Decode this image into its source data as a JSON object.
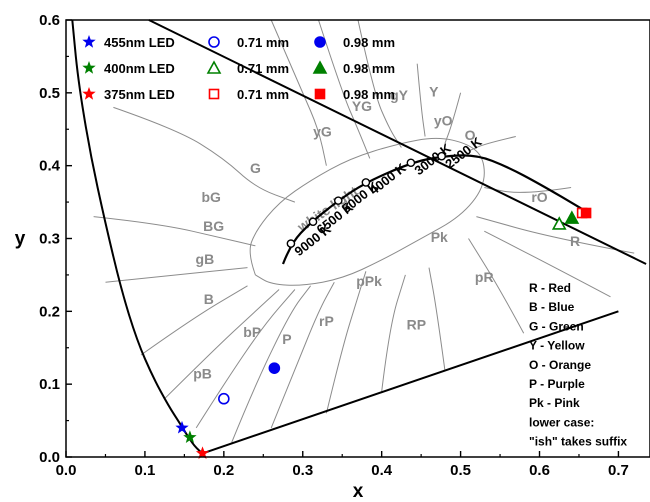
{
  "chart_data": {
    "type": "scatter",
    "title": "",
    "xlabel": "x",
    "ylabel": "y",
    "xlim": [
      0.0,
      0.74
    ],
    "ylim": [
      0.0,
      0.6
    ],
    "x_ticks": [
      "0.0",
      "0.1",
      "0.2",
      "0.3",
      "0.4",
      "0.5",
      "0.6",
      "0.7"
    ],
    "y_ticks": [
      "0.0",
      "0.1",
      "0.2",
      "0.3",
      "0.4",
      "0.5",
      "0.6"
    ],
    "grid": false,
    "legend_position": "top-left",
    "legend": {
      "rows": [
        {
          "star_label": "455nm LED",
          "open_label": "0.71 mm",
          "filled_label": "0.98 mm",
          "color": "#0000ee",
          "shape": "circle"
        },
        {
          "star_label": "400nm LED",
          "open_label": "0.71 mm",
          "filled_label": "0.98 mm",
          "color": "#008000",
          "shape": "triangle"
        },
        {
          "star_label": "375nm LED",
          "open_label": "0.71 mm",
          "filled_label": "0.98 mm",
          "color": "#ff0000",
          "shape": "square"
        }
      ]
    },
    "series": [
      {
        "name": "455nm LED",
        "marker": "star",
        "color": "#0000ee",
        "points": [
          {
            "x": 0.147,
            "y": 0.04
          }
        ]
      },
      {
        "name": "455nm LED 0.71 mm",
        "marker": "circle-open",
        "color": "#0000ee",
        "points": [
          {
            "x": 0.2,
            "y": 0.08
          }
        ]
      },
      {
        "name": "455nm LED 0.98 mm",
        "marker": "circle-filled",
        "color": "#0000ee",
        "points": [
          {
            "x": 0.264,
            "y": 0.122
          }
        ]
      },
      {
        "name": "400nm LED",
        "marker": "star",
        "color": "#008000",
        "points": [
          {
            "x": 0.157,
            "y": 0.027
          }
        ]
      },
      {
        "name": "400nm LED 0.71 mm",
        "marker": "triangle-open",
        "color": "#008000",
        "points": [
          {
            "x": 0.625,
            "y": 0.32
          }
        ]
      },
      {
        "name": "400nm LED 0.98 mm",
        "marker": "triangle-filled",
        "color": "#008000",
        "points": [
          {
            "x": 0.641,
            "y": 0.328
          }
        ]
      },
      {
        "name": "375nm LED",
        "marker": "star",
        "color": "#ff0000",
        "points": [
          {
            "x": 0.173,
            "y": 0.005
          }
        ]
      },
      {
        "name": "375nm LED 0.71 mm",
        "marker": "square-open",
        "color": "#ff0000",
        "points": [
          {
            "x": 0.654,
            "y": 0.335
          }
        ]
      },
      {
        "name": "375nm LED 0.98 mm",
        "marker": "square-filled",
        "color": "#ff0000",
        "points": [
          {
            "x": 0.659,
            "y": 0.335
          }
        ]
      }
    ],
    "spectral_locus": [
      [
        0.173,
        0.005
      ],
      [
        0.165,
        0.012
      ],
      [
        0.155,
        0.027
      ],
      [
        0.145,
        0.045
      ],
      [
        0.13,
        0.07
      ],
      [
        0.11,
        0.11
      ],
      [
        0.09,
        0.16
      ],
      [
        0.07,
        0.23
      ],
      [
        0.05,
        0.32
      ],
      [
        0.03,
        0.42
      ],
      [
        0.015,
        0.52
      ],
      [
        0.008,
        0.6
      ]
    ],
    "right_locus": [
      [
        0.105,
        0.6
      ],
      [
        0.735,
        0.265
      ]
    ],
    "purple_line": [
      [
        0.173,
        0.005
      ],
      [
        0.7,
        0.2
      ]
    ],
    "planckian_locus": [
      [
        0.275,
        0.265
      ],
      [
        0.285,
        0.293
      ],
      [
        0.31,
        0.322
      ],
      [
        0.345,
        0.352
      ],
      [
        0.38,
        0.377
      ],
      [
        0.437,
        0.404
      ],
      [
        0.476,
        0.413
      ],
      [
        0.52,
        0.415
      ],
      [
        0.56,
        0.398
      ],
      [
        0.6,
        0.375
      ],
      [
        0.655,
        0.34
      ]
    ],
    "cct_points": [
      {
        "label": "9000 K",
        "x": 0.285,
        "y": 0.293
      },
      {
        "label": "6500 K",
        "x": 0.313,
        "y": 0.323
      },
      {
        "label": "5000 K",
        "x": 0.345,
        "y": 0.352
      },
      {
        "label": "4000 K",
        "x": 0.38,
        "y": 0.377
      },
      {
        "label": "3000 K",
        "x": 0.437,
        "y": 0.404
      },
      {
        "label": "2500 K",
        "x": 0.476,
        "y": 0.413
      }
    ],
    "white_light_region": {
      "label": "white light",
      "outline": [
        [
          0.24,
          0.25
        ],
        [
          0.23,
          0.28
        ],
        [
          0.24,
          0.31
        ],
        [
          0.27,
          0.35
        ],
        [
          0.31,
          0.38
        ],
        [
          0.36,
          0.41
        ],
        [
          0.42,
          0.43
        ],
        [
          0.47,
          0.44
        ],
        [
          0.51,
          0.43
        ],
        [
          0.53,
          0.41
        ],
        [
          0.53,
          0.37
        ],
        [
          0.5,
          0.33
        ],
        [
          0.45,
          0.3
        ],
        [
          0.4,
          0.27
        ],
        [
          0.35,
          0.245
        ],
        [
          0.3,
          0.235
        ],
        [
          0.26,
          0.237
        ],
        [
          0.24,
          0.25
        ]
      ]
    },
    "region_labels": [
      {
        "text": "G",
        "x": 0.24,
        "y": 0.39
      },
      {
        "text": "yG",
        "x": 0.325,
        "y": 0.44
      },
      {
        "text": "YG",
        "x": 0.375,
        "y": 0.475
      },
      {
        "text": "gY",
        "x": 0.422,
        "y": 0.49
      },
      {
        "text": "Y",
        "x": 0.466,
        "y": 0.495
      },
      {
        "text": "yO",
        "x": 0.478,
        "y": 0.455
      },
      {
        "text": "O",
        "x": 0.512,
        "y": 0.435
      },
      {
        "text": "rO",
        "x": 0.6,
        "y": 0.35
      },
      {
        "text": "R",
        "x": 0.645,
        "y": 0.29
      },
      {
        "text": "bG",
        "x": 0.184,
        "y": 0.35
      },
      {
        "text": "BG",
        "x": 0.187,
        "y": 0.31
      },
      {
        "text": "gB",
        "x": 0.176,
        "y": 0.265
      },
      {
        "text": "B",
        "x": 0.181,
        "y": 0.21
      },
      {
        "text": "Pk",
        "x": 0.473,
        "y": 0.295
      },
      {
        "text": "pPk",
        "x": 0.384,
        "y": 0.235
      },
      {
        "text": "pR",
        "x": 0.53,
        "y": 0.24
      },
      {
        "text": "RP",
        "x": 0.444,
        "y": 0.175
      },
      {
        "text": "rP",
        "x": 0.33,
        "y": 0.18
      },
      {
        "text": "P",
        "x": 0.28,
        "y": 0.155
      },
      {
        "text": "bP",
        "x": 0.236,
        "y": 0.165
      },
      {
        "text": "pB",
        "x": 0.173,
        "y": 0.108
      }
    ],
    "color_key": [
      "R - Red",
      "B - Blue",
      "G - Green",
      "Y - Yellow",
      "O - Orange",
      "P - Purple",
      "Pk - Pink",
      "lower case:",
      "\"ish\" takes suffix"
    ]
  }
}
